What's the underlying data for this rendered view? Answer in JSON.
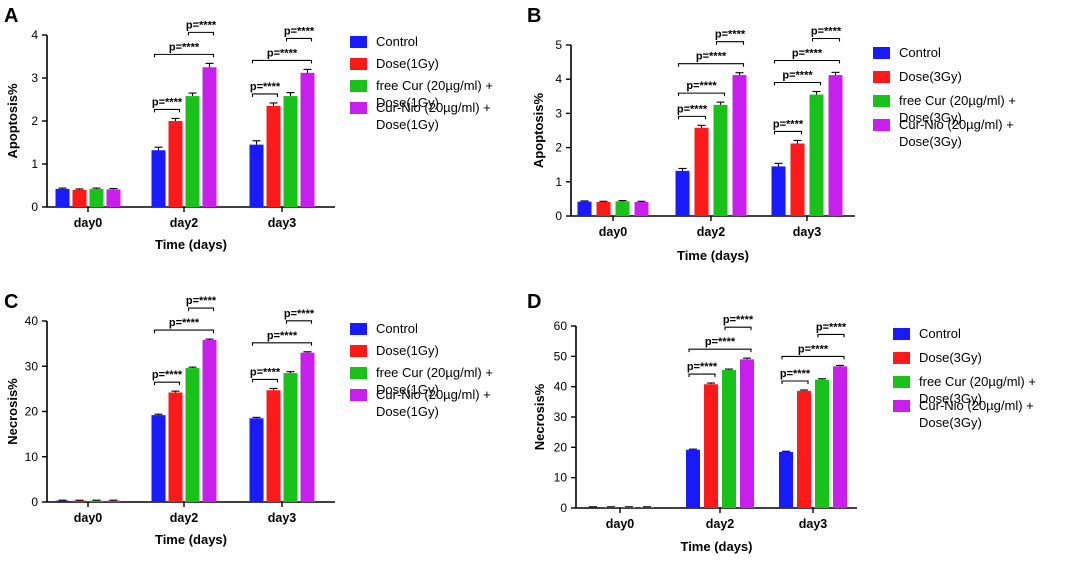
{
  "colors": {
    "Control": "#1a1aff",
    "Dose": "#ff1a1a",
    "free Cur": "#19c219",
    "Cur-Nio": "#c81fef"
  },
  "chart_data": [
    {
      "panel": "A",
      "type": "bar",
      "title": "",
      "xlabel": "Time (days)",
      "ylabel": "Apoptosis%",
      "ylim": [
        0,
        4
      ],
      "yticks": [
        0,
        1,
        2,
        3,
        4
      ],
      "categories": [
        "day0",
        "day2",
        "day3"
      ],
      "series": [
        {
          "name": "Control",
          "legend": [
            "Control"
          ],
          "values": [
            0.42,
            1.32,
            1.45
          ],
          "errors": [
            0.02,
            0.07,
            0.09
          ]
        },
        {
          "name": "Dose",
          "legend": [
            "Dose(1Gy)"
          ],
          "values": [
            0.4,
            2.0,
            2.35
          ],
          "errors": [
            0.02,
            0.06,
            0.07
          ]
        },
        {
          "name": "free Cur",
          "legend": [
            "free Cur (20µg/ml) +",
            "Dose(1Gy)"
          ],
          "values": [
            0.42,
            2.58,
            2.58
          ],
          "errors": [
            0.02,
            0.07,
            0.08
          ]
        },
        {
          "name": "Cur-Nio",
          "legend": [
            "Cur-Nio (20µg/ml) +",
            "Dose(1Gy)"
          ],
          "values": [
            0.41,
            3.25,
            3.12
          ],
          "errors": [
            0.02,
            0.09,
            0.08
          ]
        }
      ],
      "significance": [
        {
          "category": 1,
          "from": 0,
          "to": 3,
          "label": "p=****"
        },
        {
          "category": 1,
          "from": 2,
          "to": 3,
          "label": "p=****"
        },
        {
          "category": 1,
          "from": 0,
          "to": 1,
          "label": "p=****"
        },
        {
          "category": 2,
          "from": 0,
          "to": 3,
          "label": "p=****"
        },
        {
          "category": 2,
          "from": 2,
          "to": 3,
          "label": "p=****"
        },
        {
          "category": 2,
          "from": 0,
          "to": 1,
          "label": "p=****"
        }
      ]
    },
    {
      "panel": "B",
      "type": "bar",
      "title": "",
      "xlabel": "Time (days)",
      "ylabel": "Apoptosis%",
      "ylim": [
        0,
        5
      ],
      "yticks": [
        0,
        1,
        2,
        3,
        4,
        5
      ],
      "categories": [
        "day0",
        "day2",
        "day3"
      ],
      "series": [
        {
          "name": "Control",
          "legend": [
            "Control"
          ],
          "values": [
            0.42,
            1.32,
            1.45
          ],
          "errors": [
            0.02,
            0.07,
            0.09
          ]
        },
        {
          "name": "Dose",
          "legend": [
            "Dose(3Gy)"
          ],
          "values": [
            0.41,
            2.58,
            2.12
          ],
          "errors": [
            0.02,
            0.07,
            0.09
          ]
        },
        {
          "name": "free Cur",
          "legend": [
            "free Cur (20µg/ml) +",
            "Dose(3Gy)"
          ],
          "values": [
            0.43,
            3.25,
            3.55
          ],
          "errors": [
            0.02,
            0.08,
            0.09
          ]
        },
        {
          "name": "Cur-Nio",
          "legend": [
            "Cur-Nio (20µg/ml) +",
            "Dose(3Gy)"
          ],
          "values": [
            0.41,
            4.12,
            4.12
          ],
          "errors": [
            0.02,
            0.07,
            0.08
          ]
        }
      ],
      "significance": [
        {
          "category": 1,
          "from": 0,
          "to": 3,
          "label": "p=****"
        },
        {
          "category": 1,
          "from": 2,
          "to": 3,
          "label": "p=****"
        },
        {
          "category": 1,
          "from": 0,
          "to": 2,
          "label": "p=****"
        },
        {
          "category": 1,
          "from": 0,
          "to": 1,
          "label": "p=****"
        },
        {
          "category": 2,
          "from": 0,
          "to": 3,
          "label": "p=****"
        },
        {
          "category": 2,
          "from": 2,
          "to": 3,
          "label": "p=****"
        },
        {
          "category": 2,
          "from": 0,
          "to": 2,
          "label": "p=****"
        },
        {
          "category": 2,
          "from": 0,
          "to": 1,
          "label": "p=****"
        }
      ]
    },
    {
      "panel": "C",
      "type": "bar",
      "title": "",
      "xlabel": "Time (days)",
      "ylabel": "Necrosis%",
      "ylim": [
        0,
        40
      ],
      "yticks": [
        0,
        10,
        20,
        30,
        40
      ],
      "categories": [
        "day0",
        "day2",
        "day3"
      ],
      "series": [
        {
          "name": "Control",
          "legend": [
            "Control"
          ],
          "values": [
            0.3,
            19.2,
            18.5
          ],
          "errors": [
            0.1,
            0.2,
            0.2
          ]
        },
        {
          "name": "Dose",
          "legend": [
            "Dose(1Gy)"
          ],
          "values": [
            0.3,
            24.2,
            24.7
          ],
          "errors": [
            0.1,
            0.3,
            0.4
          ]
        },
        {
          "name": "free Cur",
          "legend": [
            "free Cur (20µg/ml) +",
            "Dose(1Gy)"
          ],
          "values": [
            0.3,
            29.6,
            28.5
          ],
          "errors": [
            0.1,
            0.2,
            0.3
          ]
        },
        {
          "name": "Cur-Nio",
          "legend": [
            "Cur-Nio (20µg/ml) +",
            "Dose(1Gy)"
          ],
          "values": [
            0.3,
            35.8,
            33.0
          ],
          "errors": [
            0.1,
            0.2,
            0.2
          ]
        }
      ],
      "significance": [
        {
          "category": 1,
          "from": 0,
          "to": 3,
          "label": "p=****"
        },
        {
          "category": 1,
          "from": 2,
          "to": 3,
          "label": "p=****"
        },
        {
          "category": 1,
          "from": 0,
          "to": 1,
          "label": "p=****"
        },
        {
          "category": 2,
          "from": 0,
          "to": 3,
          "label": "p=****"
        },
        {
          "category": 2,
          "from": 2,
          "to": 3,
          "label": "p=****"
        },
        {
          "category": 2,
          "from": 0,
          "to": 1,
          "label": "p=****"
        }
      ]
    },
    {
      "panel": "D",
      "type": "bar",
      "title": "",
      "xlabel": "Time (days)",
      "ylabel": "Necrosis%",
      "ylim": [
        0,
        60
      ],
      "yticks": [
        0,
        10,
        20,
        30,
        40,
        50,
        60
      ],
      "categories": [
        "day0",
        "day2",
        "day3"
      ],
      "series": [
        {
          "name": "Control",
          "legend": [
            "Control"
          ],
          "values": [
            0.3,
            19.2,
            18.5
          ],
          "errors": [
            0.1,
            0.2,
            0.2
          ]
        },
        {
          "name": "Dose",
          "legend": [
            "Dose(3Gy)"
          ],
          "values": [
            0.3,
            40.8,
            38.6
          ],
          "errors": [
            0.1,
            0.4,
            0.3
          ]
        },
        {
          "name": "free Cur",
          "legend": [
            "free Cur (20µg/ml) +",
            "Dose(3Gy)"
          ],
          "values": [
            0.3,
            45.5,
            42.3
          ],
          "errors": [
            0.1,
            0.3,
            0.3
          ]
        },
        {
          "name": "Cur-Nio",
          "legend": [
            "Cur-Nio (20µg/ml) +",
            "Dose(3Gy)"
          ],
          "values": [
            0.3,
            49.0,
            46.7
          ],
          "errors": [
            0.1,
            0.4,
            0.3
          ]
        }
      ],
      "significance": [
        {
          "category": 1,
          "from": 0,
          "to": 3,
          "label": "p=****"
        },
        {
          "category": 1,
          "from": 2,
          "to": 3,
          "label": "p=****"
        },
        {
          "category": 1,
          "from": 0,
          "to": 1,
          "label": "p=****"
        },
        {
          "category": 2,
          "from": 0,
          "to": 3,
          "label": "p=****"
        },
        {
          "category": 2,
          "from": 2,
          "to": 3,
          "label": "p=****"
        },
        {
          "category": 2,
          "from": 0,
          "to": 1,
          "label": "p=****"
        }
      ]
    }
  ]
}
